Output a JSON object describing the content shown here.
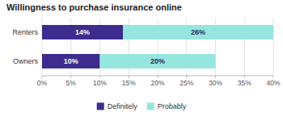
{
  "chart_data": {
    "type": "bar",
    "orientation": "horizontal",
    "stacked": true,
    "title": "Willingness to purchase insurance online",
    "categories": [
      "Renters",
      "Owners"
    ],
    "series": [
      {
        "name": "Definitely",
        "color": "#3d2b8e",
        "values": [
          14,
          10
        ],
        "value_labels": [
          "14%",
          "10%"
        ]
      },
      {
        "name": "Probably",
        "color": "#96e6e0",
        "values": [
          26,
          20
        ],
        "value_labels": [
          "26%",
          "20%"
        ]
      }
    ],
    "xlim": [
      0,
      40
    ],
    "xticks": [
      {
        "value": 0,
        "label": "0%"
      },
      {
        "value": 5,
        "label": "5%"
      },
      {
        "value": 10,
        "label": "10%"
      },
      {
        "value": 15,
        "label": "15%"
      },
      {
        "value": 20,
        "label": "20%"
      },
      {
        "value": 25,
        "label": "25%"
      },
      {
        "value": 30,
        "label": "30%"
      },
      {
        "value": 35,
        "label": "35%"
      },
      {
        "value": 40,
        "label": "40%"
      }
    ],
    "grid": true,
    "data_labels": true,
    "legend": "bottom"
  }
}
